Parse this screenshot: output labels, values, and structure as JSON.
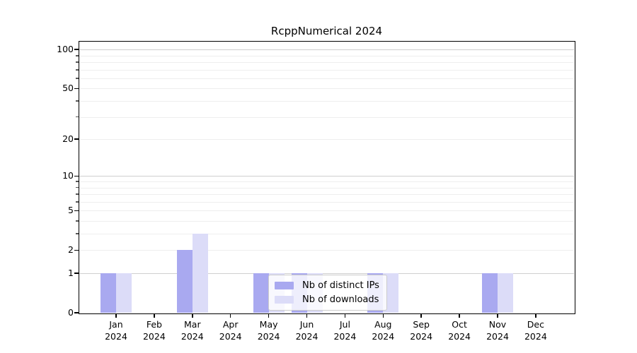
{
  "page": {
    "background": "#ffffff"
  },
  "chart_data": {
    "type": "bar",
    "title": "RcppNumerical 2024",
    "categories": [
      "Jan",
      "Feb",
      "Mar",
      "Apr",
      "May",
      "Jun",
      "Jul",
      "Aug",
      "Sep",
      "Oct",
      "Nov",
      "Dec"
    ],
    "x_year_label": "2024",
    "series": [
      {
        "name": "Nb of distinct IPs",
        "values": [
          1,
          0,
          2,
          0,
          1,
          1,
          0,
          1,
          0,
          0,
          1,
          0
        ],
        "color": "#a9a9f0"
      },
      {
        "name": "Nb of downloads",
        "values": [
          1,
          0,
          3,
          0,
          1,
          1,
          0,
          1,
          0,
          0,
          1,
          0
        ],
        "color": "#dcdcf8"
      }
    ],
    "xlabel": "",
    "ylabel": "",
    "yscale": "log1p",
    "ylim": [
      0,
      115
    ],
    "yticks": [
      0,
      1,
      2,
      5,
      10,
      20,
      50,
      100
    ],
    "yticklabels": [
      "0",
      "1",
      "2",
      "5",
      "10",
      "20",
      "50",
      "100"
    ],
    "yticks_minor": [
      3,
      4,
      6,
      7,
      8,
      9,
      30,
      40,
      60,
      70,
      80,
      90
    ],
    "gridlines_decade": [
      1,
      10,
      100
    ],
    "gridlines_faint": [
      2,
      3,
      4,
      5,
      6,
      7,
      8,
      9,
      20,
      30,
      40,
      50,
      60,
      70,
      80,
      90
    ],
    "grid": true,
    "legend_position": "lower center",
    "colors": {
      "grid_decade": "#cfcfcf",
      "grid_faint": "#eeeeee",
      "spine": "#000000",
      "tick_major": "#000000",
      "tick_minor": "#555555",
      "text": "#000000",
      "legend_border": "#cccccc",
      "legend_background": "rgba(255,255,255,0.8)"
    }
  }
}
